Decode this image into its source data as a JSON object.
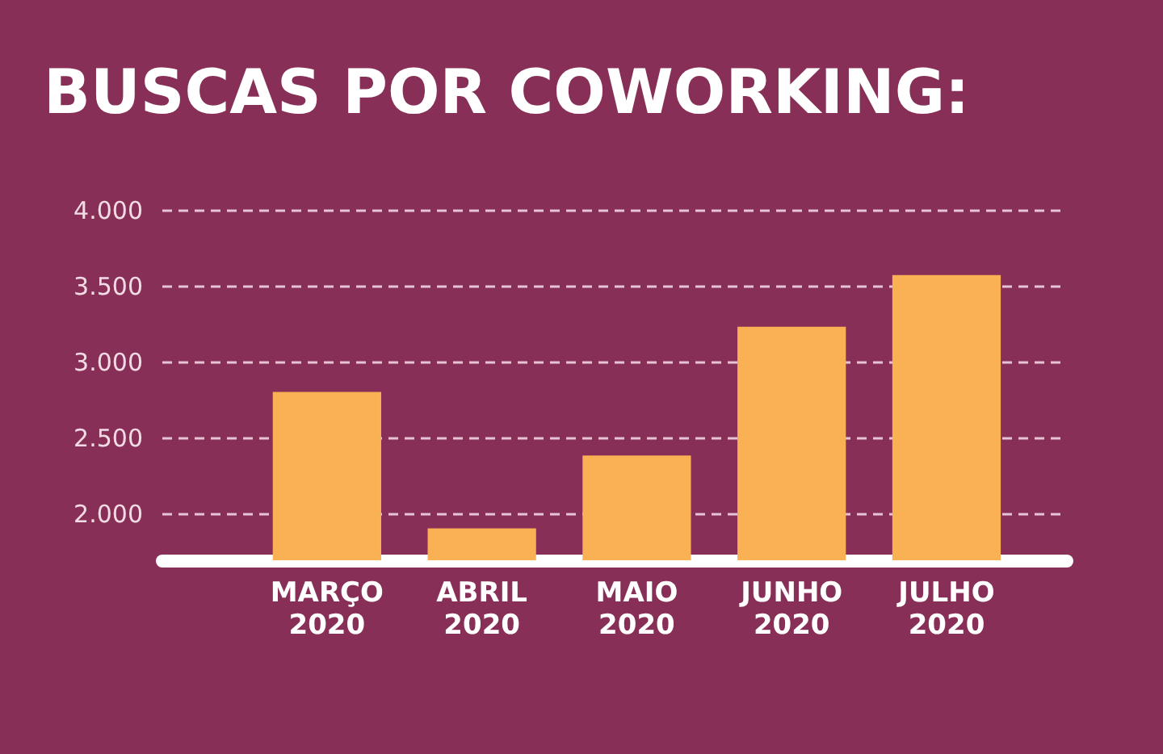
{
  "chart_data": {
    "type": "bar",
    "title": "BUSCAS POR COWORKING:",
    "categories": [
      "MARÇO\n2020",
      "ABRIL\n2020",
      "MAIO\n2020",
      "JUNHO\n2020",
      "JULHO\n2020"
    ],
    "values": [
      2800,
      1900,
      2380,
      3230,
      3570
    ],
    "color": "#fab153",
    "ylim": [
      1690,
      4000
    ],
    "yticks": [
      {
        "value": 2000,
        "label": "2.000"
      },
      {
        "value": 2500,
        "label": "2.500"
      },
      {
        "value": 3000,
        "label": "3.000"
      },
      {
        "value": 3500,
        "label": "3.500"
      },
      {
        "value": 4000,
        "label": "4.000"
      }
    ],
    "grid": "y"
  }
}
